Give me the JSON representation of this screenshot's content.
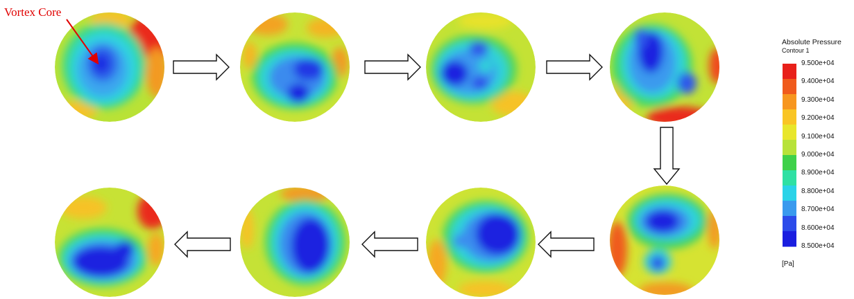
{
  "annotation": {
    "label": "Vortex Core",
    "color": "#e00000"
  },
  "legend": {
    "title": "Absolute Pressure",
    "subtitle": "Contour 1",
    "ticks": [
      "9.500e+04",
      "9.400e+04",
      "9.300e+04",
      "9.200e+04",
      "9.100e+04",
      "9.000e+04",
      "8.900e+04",
      "8.800e+04",
      "8.700e+04",
      "8.600e+04",
      "8.500e+04"
    ],
    "unit": "[Pa]",
    "colors": [
      "#e8201a",
      "#f05a1c",
      "#f7961f",
      "#f9c524",
      "#e8e62b",
      "#b7e23a",
      "#3ed14a",
      "#2fe0a3",
      "#2ad3e8",
      "#3a9aee",
      "#2c4bea",
      "#1a1ee0"
    ]
  },
  "sequence": {
    "frames": 8,
    "direction": [
      "right",
      "right",
      "right",
      "down",
      "left",
      "left",
      "left"
    ]
  }
}
